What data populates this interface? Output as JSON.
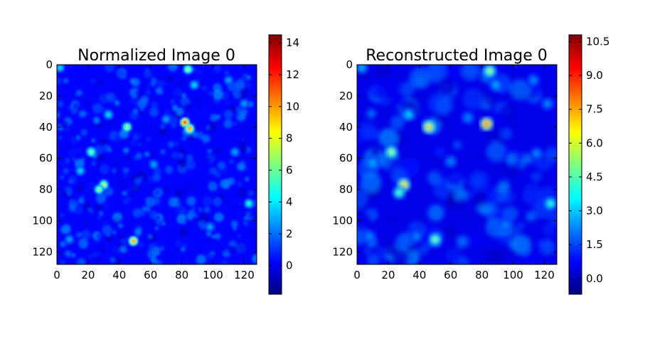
{
  "chart_data": [
    {
      "type": "heatmap",
      "title": "Normalized Image 0",
      "xlabel": "",
      "ylabel": "",
      "xlim": [
        0,
        128
      ],
      "ylim": [
        128,
        0
      ],
      "x_ticks": [
        0,
        20,
        40,
        60,
        80,
        100,
        120
      ],
      "y_ticks": [
        0,
        20,
        40,
        60,
        80,
        100,
        120
      ],
      "colormap": "jet",
      "colorbar": {
        "min": -1.8,
        "max": 14.5,
        "ticks": [
          "0",
          "2",
          "4",
          "6",
          "8",
          "10",
          "12",
          "14"
        ],
        "tick_values": [
          0,
          2,
          4,
          6,
          8,
          10,
          12,
          14
        ]
      },
      "background_value": 0.3,
      "grid": true,
      "hotspots": [
        {
          "x": 82,
          "y": 37,
          "value": 14.0
        },
        {
          "x": 85,
          "y": 41,
          "value": 11.0
        },
        {
          "x": 49,
          "y": 113,
          "value": 11.0
        },
        {
          "x": 30,
          "y": 77,
          "value": 8.0
        },
        {
          "x": 27,
          "y": 80,
          "value": 7.0
        },
        {
          "x": 45,
          "y": 40,
          "value": 7.5
        },
        {
          "x": 84,
          "y": 3,
          "value": 7.0
        },
        {
          "x": 22,
          "y": 56,
          "value": 6.5
        },
        {
          "x": 123,
          "y": 89,
          "value": 5.0
        },
        {
          "x": 2,
          "y": 2,
          "value": 4.0
        },
        {
          "x": 33,
          "y": 32,
          "value": 4.0
        },
        {
          "x": 15,
          "y": 68,
          "value": 4.0
        },
        {
          "x": 62,
          "y": 64,
          "value": 3.0
        },
        {
          "x": 70,
          "y": 35,
          "value": 3.0
        },
        {
          "x": 98,
          "y": 104,
          "value": 3.0
        },
        {
          "x": 114,
          "y": 56,
          "value": 3.0
        },
        {
          "x": 110,
          "y": 10,
          "value": 3.0
        },
        {
          "x": 120,
          "y": 25,
          "value": 3.0
        },
        {
          "x": 8,
          "y": 112,
          "value": 3.0
        },
        {
          "x": 88,
          "y": 13,
          "value": 4.0
        }
      ]
    },
    {
      "type": "heatmap",
      "title": "Reconstructed Image 0",
      "xlabel": "",
      "ylabel": "",
      "xlim": [
        0,
        128
      ],
      "ylim": [
        128,
        0
      ],
      "x_ticks": [
        0,
        20,
        40,
        60,
        80,
        100,
        120
      ],
      "y_ticks": [
        0,
        20,
        40,
        60,
        80,
        100,
        120
      ],
      "colormap": "jet",
      "colorbar": {
        "min": -0.7,
        "max": 10.8,
        "ticks": [
          "0.0",
          "1.5",
          "3.0",
          "4.5",
          "6.0",
          "7.5",
          "9.0",
          "10.5"
        ],
        "tick_values": [
          0,
          1.5,
          3,
          4.5,
          6,
          7.5,
          9,
          10.5
        ]
      },
      "background_value": 0.5,
      "grid": true,
      "hotspots": [
        {
          "x": 83,
          "y": 38,
          "value": 10.5
        },
        {
          "x": 46,
          "y": 40,
          "value": 8.0
        },
        {
          "x": 30,
          "y": 77,
          "value": 8.0
        },
        {
          "x": 22,
          "y": 56,
          "value": 6.0
        },
        {
          "x": 85,
          "y": 4,
          "value": 6.0
        },
        {
          "x": 50,
          "y": 112,
          "value": 5.5
        },
        {
          "x": 27,
          "y": 82,
          "value": 5.0
        },
        {
          "x": 124,
          "y": 89,
          "value": 4.5
        },
        {
          "x": 3,
          "y": 2,
          "value": 3.0
        },
        {
          "x": 33,
          "y": 32,
          "value": 3.5
        },
        {
          "x": 10,
          "y": 63,
          "value": 3.0
        },
        {
          "x": 60,
          "y": 62,
          "value": 2.5
        },
        {
          "x": 71,
          "y": 34,
          "value": 2.5
        },
        {
          "x": 95,
          "y": 103,
          "value": 2.5
        },
        {
          "x": 115,
          "y": 57,
          "value": 2.5
        },
        {
          "x": 113,
          "y": 10,
          "value": 2.5
        },
        {
          "x": 122,
          "y": 25,
          "value": 2.5
        },
        {
          "x": 8,
          "y": 110,
          "value": 2.5
        },
        {
          "x": 89,
          "y": 13,
          "value": 3.0
        },
        {
          "x": 38,
          "y": 110,
          "value": 2.5
        }
      ]
    }
  ]
}
